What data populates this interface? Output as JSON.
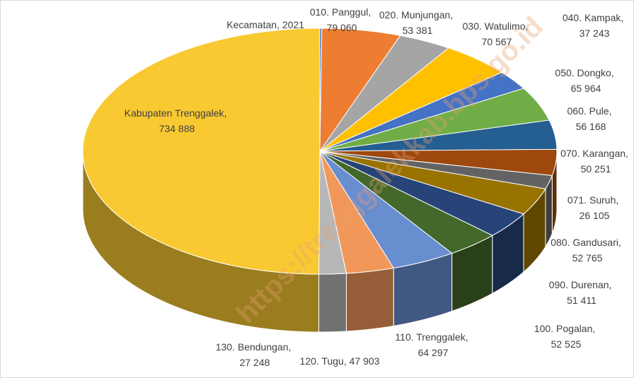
{
  "chart_data": {
    "type": "pie3d",
    "watermark": "https://trenggalekkab.bps.go.id",
    "categories": [
      "Kecamatan",
      "010. Panggul",
      "020. Munjungan",
      "030. Watulimo",
      "040. Kampak",
      "050. Dongko",
      "060. Pule",
      "070. Karangan",
      "071. Suruh",
      "080. Gandusari",
      "090. Durenan",
      "100. Pogalan",
      "110. Trenggalek",
      "120. Tugu",
      "130. Bendungan",
      "Kabupaten Trenggalek"
    ],
    "values": [
      2021,
      79060,
      53381,
      70567,
      37243,
      65964,
      56168,
      50251,
      26105,
      52765,
      51411,
      52525,
      64297,
      47903,
      27248,
      734888
    ],
    "value_labels": [
      "2021",
      "79 060",
      "53 381",
      "70 567",
      "37 243",
      "65 964",
      "56 168",
      "50 251",
      "26 105",
      "52 765",
      "51 411",
      "52 525",
      "64 297",
      "47 903",
      "27 248",
      "734 888"
    ],
    "colors": [
      "#4472c4",
      "#ed7d31",
      "#a5a5a5",
      "#ffc000",
      "#4472c4",
      "#70ad47",
      "#255e91",
      "#9e480e",
      "#636363",
      "#997300",
      "#264478",
      "#43682b",
      "#698ed0",
      "#f1975a",
      "#b7b7b7",
      "#f9c932"
    ]
  }
}
